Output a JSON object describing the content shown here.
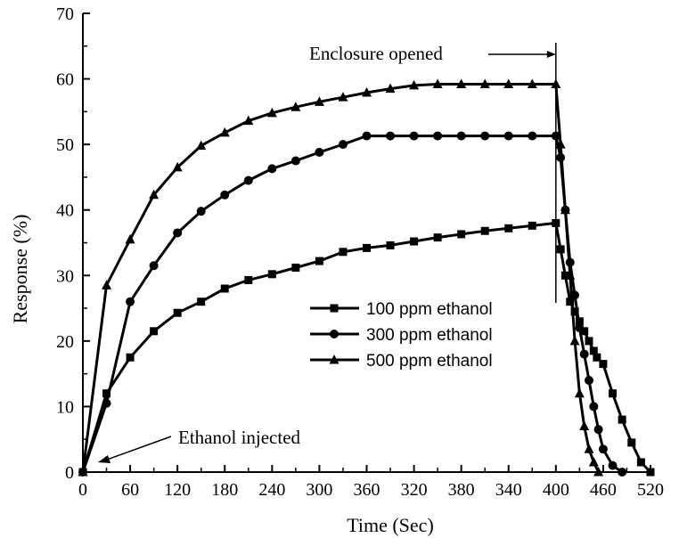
{
  "chart_data": {
    "type": "line",
    "title": "",
    "xlabel": "Time (Sec)",
    "ylabel": "Response (%)",
    "x_ticks": [
      "0",
      "60",
      "120",
      "180",
      "240",
      "300",
      "360",
      "320",
      "380",
      "340",
      "400",
      "460",
      "520"
    ],
    "x_tick_positions": [
      0,
      60,
      120,
      180,
      240,
      300,
      360,
      420,
      480,
      540,
      600,
      660,
      720
    ],
    "xlim": [
      0,
      720
    ],
    "ylim": [
      0,
      70
    ],
    "y_ticks": [
      "0",
      "10",
      "20",
      "30",
      "40",
      "50",
      "60",
      "70"
    ],
    "grid": false,
    "legend_position": "center-right",
    "series": [
      {
        "name": "100 ppm ethanol",
        "marker": "square",
        "x": [
          0,
          30,
          60,
          90,
          120,
          150,
          180,
          210,
          240,
          270,
          300,
          330,
          360,
          390,
          420,
          450,
          480,
          510,
          540,
          570,
          600,
          606,
          612,
          618,
          624,
          630,
          636,
          642,
          648,
          652,
          660,
          672,
          684,
          696,
          708,
          720
        ],
        "y": [
          0,
          12,
          17.5,
          21.5,
          24.3,
          26,
          28,
          29.3,
          30.2,
          31.2,
          32.2,
          33.6,
          34.2,
          34.6,
          35.2,
          35.8,
          36.3,
          36.8,
          37.2,
          37.6,
          38,
          34,
          30,
          26,
          24.5,
          23,
          21.5,
          20,
          18.5,
          17.5,
          16.5,
          12,
          8,
          4.5,
          1.5,
          0
        ]
      },
      {
        "name": "300 ppm ethanol",
        "marker": "circle",
        "x": [
          0,
          30,
          60,
          90,
          120,
          150,
          180,
          210,
          240,
          270,
          300,
          330,
          360,
          390,
          420,
          450,
          480,
          510,
          540,
          570,
          600,
          606,
          612,
          618,
          624,
          630,
          636,
          642,
          648,
          654,
          660,
          672,
          684
        ],
        "y": [
          0,
          10.5,
          26,
          31.5,
          36.5,
          39.8,
          42.3,
          44.5,
          46.3,
          47.5,
          48.8,
          50,
          51.3,
          51.3,
          51.3,
          51.3,
          51.3,
          51.3,
          51.3,
          51.3,
          51.3,
          48,
          40,
          32,
          27,
          22,
          18,
          14,
          10,
          6.5,
          3.5,
          1,
          0
        ]
      },
      {
        "name": "500 ppm ethanol",
        "marker": "triangle",
        "x": [
          0,
          30,
          60,
          90,
          120,
          150,
          180,
          210,
          240,
          270,
          300,
          330,
          360,
          390,
          420,
          450,
          480,
          510,
          540,
          570,
          600,
          606,
          612,
          618,
          624,
          630,
          636,
          642,
          648,
          654
        ],
        "y": [
          0,
          28.5,
          35.5,
          42.3,
          46.5,
          49.8,
          51.8,
          53.6,
          54.8,
          55.7,
          56.5,
          57.2,
          57.9,
          58.5,
          59,
          59.2,
          59.2,
          59.2,
          59.2,
          59.2,
          59.2,
          50,
          40,
          30,
          20,
          12,
          7,
          3.5,
          1.5,
          0
        ]
      }
    ],
    "annotations": [
      {
        "text": "Enclosure opened"
      },
      {
        "text": "Ethanol injected"
      }
    ]
  }
}
